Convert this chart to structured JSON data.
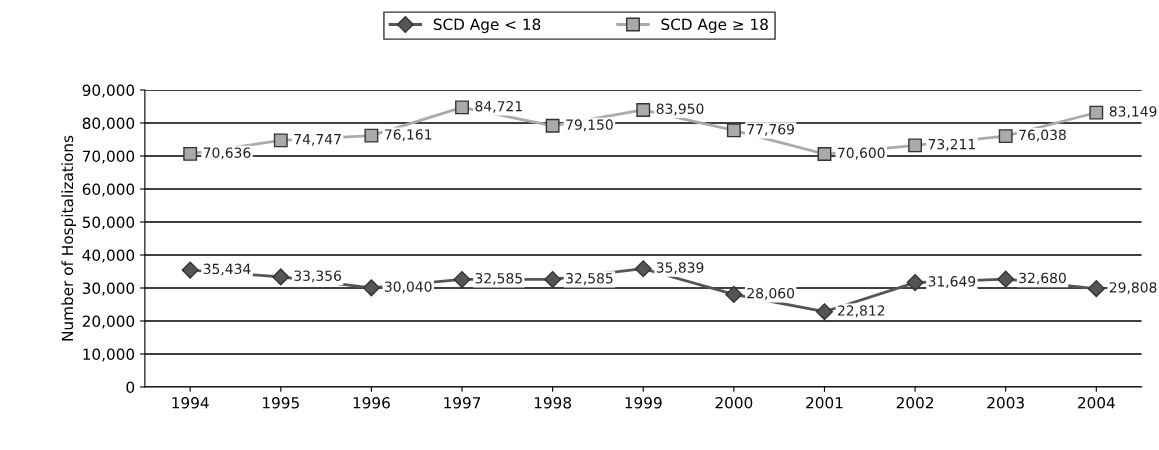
{
  "chart_data": {
    "type": "line",
    "ylabel": "Number of Hospitalizations",
    "categories": [
      "1994",
      "1995",
      "1996",
      "1997",
      "1998",
      "1999",
      "2000",
      "2001",
      "2002",
      "2003",
      "2004"
    ],
    "series": [
      {
        "name": "SCD Age < 18",
        "color": "#555555",
        "marker": "diamond",
        "values": [
          35434,
          33356,
          30040,
          32585,
          32585,
          35839,
          28060,
          22812,
          31649,
          32680,
          29808
        ],
        "value_labels": [
          "35,434",
          "33,356",
          "30,040",
          "32,585",
          "32,585",
          "35,839",
          "28,060",
          "22,812",
          "31,649",
          "32,680",
          "29,808"
        ]
      },
      {
        "name": "SCD Age ≥ 18",
        "color": "#aaaaaa",
        "marker": "square",
        "values": [
          70636,
          74747,
          76161,
          84721,
          79150,
          83950,
          77769,
          70600,
          73211,
          76038,
          83149
        ],
        "value_labels": [
          "70,636",
          "74,747",
          "76,161",
          "84,721",
          "79,150",
          "83,950",
          "77,769",
          "70,600",
          "73,211",
          "76,038",
          "83,149"
        ]
      }
    ],
    "ylim": [
      0,
      90000
    ],
    "yticks": [
      {
        "value": 0,
        "label": "0"
      },
      {
        "value": 10000,
        "label": "10,000"
      },
      {
        "value": 20000,
        "label": "20,000"
      },
      {
        "value": 30000,
        "label": "30,000"
      },
      {
        "value": 40000,
        "label": "40,000"
      },
      {
        "value": 50000,
        "label": "50,000"
      },
      {
        "value": 60000,
        "label": "60,000"
      },
      {
        "value": 70000,
        "label": "70,000"
      },
      {
        "value": 80000,
        "label": "80,000"
      },
      {
        "value": 90000,
        "label": "90,000"
      }
    ],
    "grid": "y",
    "legend": "top"
  }
}
